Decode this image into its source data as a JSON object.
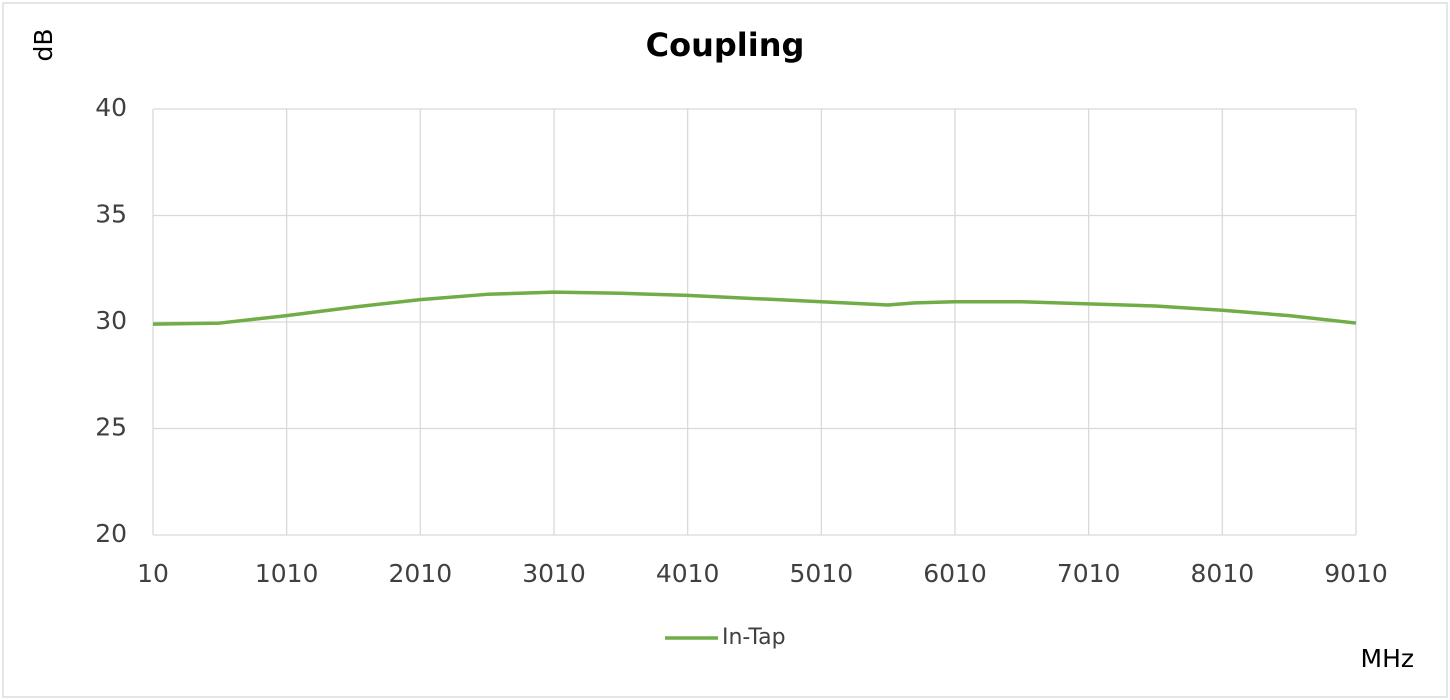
{
  "chart_data": {
    "type": "line",
    "title": "Coupling",
    "y_label": "dB",
    "x_label": "MHz",
    "x": [
      10,
      510,
      1010,
      1510,
      2010,
      2510,
      3010,
      3510,
      4010,
      4510,
      5010,
      5510,
      5710,
      6010,
      6510,
      7010,
      7510,
      8010,
      8510,
      9010
    ],
    "series": [
      {
        "name": "In-Tap",
        "color": "#70ad47",
        "values": [
          29.9,
          29.95,
          30.3,
          30.7,
          31.05,
          31.3,
          31.4,
          31.35,
          31.25,
          31.1,
          30.95,
          30.8,
          30.9,
          30.95,
          30.95,
          30.85,
          30.75,
          30.55,
          30.3,
          29.95
        ]
      }
    ],
    "xlim": [
      10,
      9010
    ],
    "xticks": [
      10,
      1010,
      2010,
      3010,
      4010,
      5010,
      6010,
      7010,
      8010,
      9010
    ],
    "ylim": [
      20,
      40
    ],
    "yticks": [
      20,
      25,
      30,
      35,
      40
    ],
    "grid": true,
    "legend": "bottom"
  }
}
